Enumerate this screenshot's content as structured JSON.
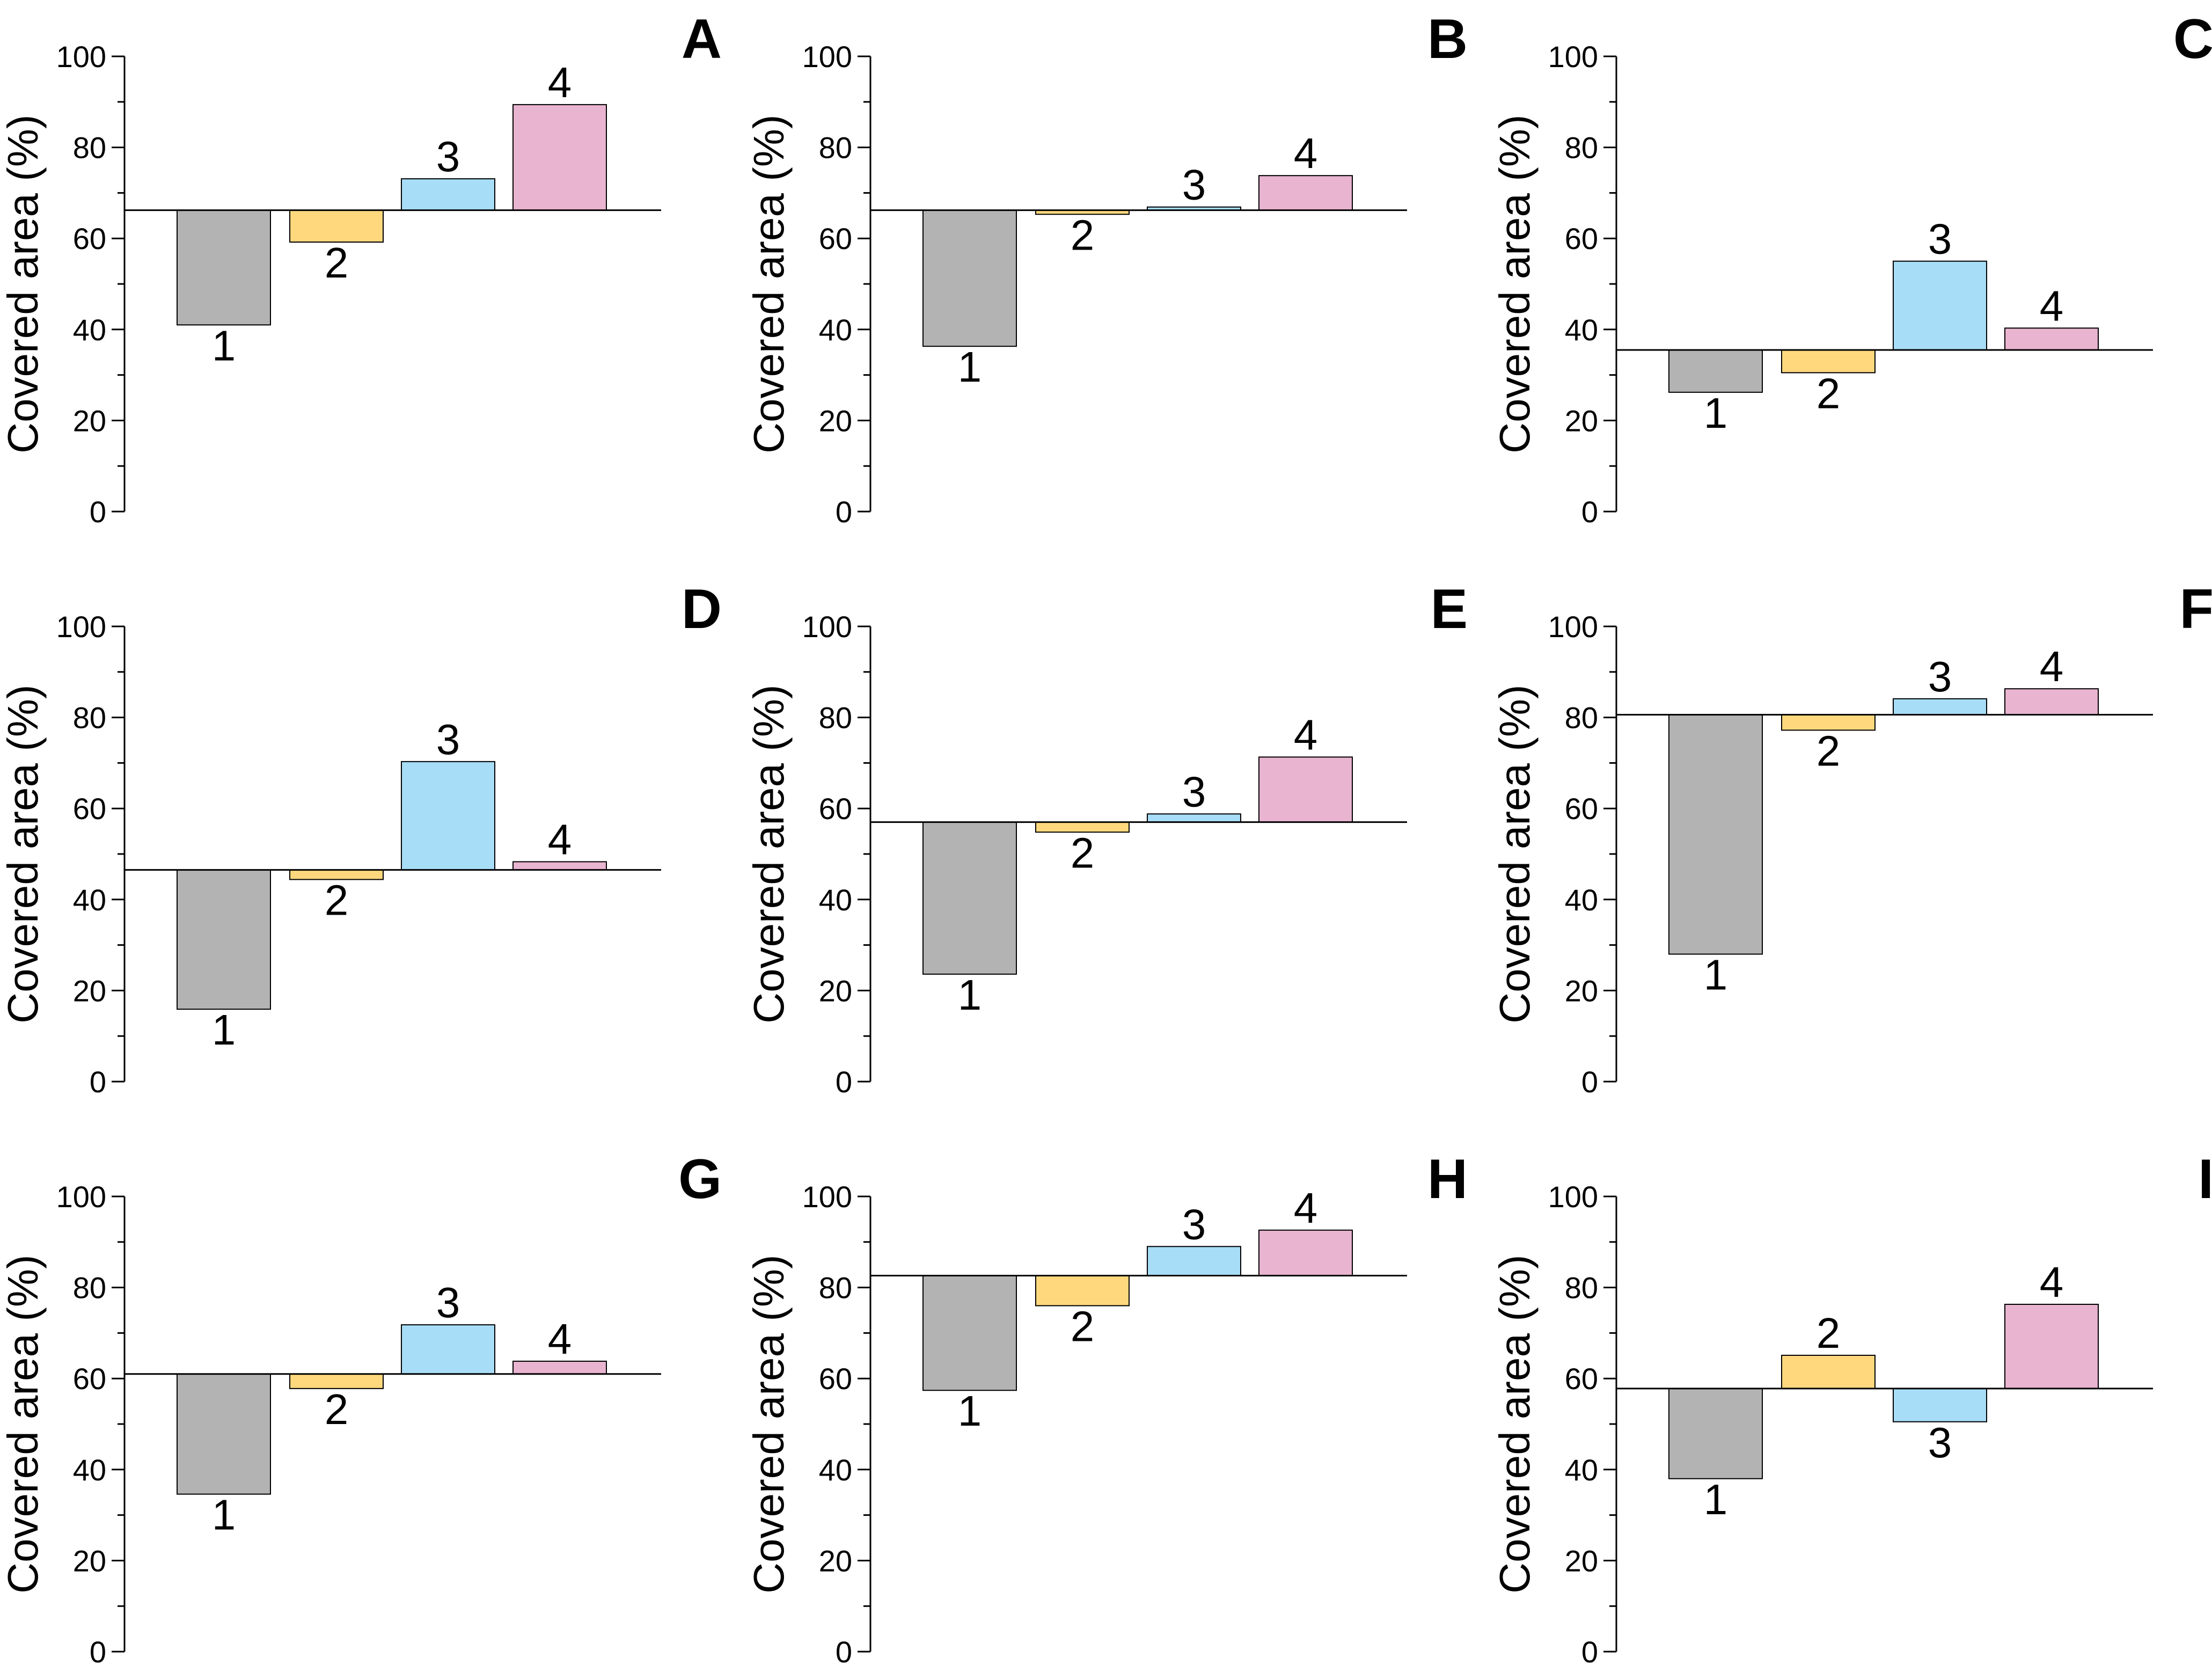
{
  "figure": {
    "panel_count": 9
  },
  "colors": {
    "bar_1": "#b3b3b3",
    "bar_2": "#ffd87e",
    "bar_3": "#a8ddf7",
    "bar_4": "#e8b4d0",
    "axis": "#000000"
  },
  "chart_data": [
    {
      "panel": "A",
      "type": "bar",
      "title": "",
      "xlabel": "",
      "ylabel": "Covered area (%)",
      "ylim": [
        0,
        100
      ],
      "yticks": [
        "0",
        "20",
        "40",
        "60",
        "80",
        "100"
      ],
      "baseline": 66.2,
      "categories": [
        "1",
        "2",
        "3",
        "4"
      ],
      "values": [
        41.0,
        59.2,
        73.1,
        89.4
      ]
    },
    {
      "panel": "B",
      "type": "bar",
      "title": "",
      "xlabel": "",
      "ylabel": "Covered area (%)",
      "ylim": [
        0,
        100
      ],
      "yticks": [
        "0",
        "20",
        "40",
        "60",
        "80",
        "100"
      ],
      "baseline": 66.2,
      "categories": [
        "1",
        "2",
        "3",
        "4"
      ],
      "values": [
        36.3,
        65.3,
        66.9,
        73.8
      ]
    },
    {
      "panel": "C",
      "type": "bar",
      "title": "",
      "xlabel": "",
      "ylabel": "Covered area (%)",
      "ylim": [
        0,
        100
      ],
      "yticks": [
        "0",
        "20",
        "40",
        "60",
        "80",
        "100"
      ],
      "baseline": 35.5,
      "categories": [
        "1",
        "2",
        "3",
        "4"
      ],
      "values": [
        26.2,
        30.5,
        55.0,
        40.3
      ]
    },
    {
      "panel": "D",
      "type": "bar",
      "title": "",
      "xlabel": "",
      "ylabel": "Covered area (%)",
      "ylim": [
        0,
        100
      ],
      "yticks": [
        "0",
        "20",
        "40",
        "60",
        "80",
        "100"
      ],
      "baseline": 46.5,
      "categories": [
        "1",
        "2",
        "3",
        "4"
      ],
      "values": [
        15.9,
        44.4,
        70.3,
        48.3
      ]
    },
    {
      "panel": "E",
      "type": "bar",
      "title": "",
      "xlabel": "",
      "ylabel": "Covered area (%)",
      "ylim": [
        0,
        100
      ],
      "yticks": [
        "0",
        "20",
        "40",
        "60",
        "80",
        "100"
      ],
      "baseline": 57.0,
      "categories": [
        "1",
        "2",
        "3",
        "4"
      ],
      "values": [
        23.6,
        54.8,
        58.8,
        71.3
      ]
    },
    {
      "panel": "F",
      "type": "bar",
      "title": "",
      "xlabel": "",
      "ylabel": "Covered area (%)",
      "ylim": [
        0,
        100
      ],
      "yticks": [
        "0",
        "20",
        "40",
        "60",
        "80",
        "100"
      ],
      "baseline": 80.6,
      "categories": [
        "1",
        "2",
        "3",
        "4"
      ],
      "values": [
        28.0,
        77.2,
        84.1,
        86.3
      ]
    },
    {
      "panel": "G",
      "type": "bar",
      "title": "",
      "xlabel": "",
      "ylabel": "Covered area (%)",
      "ylim": [
        0,
        100
      ],
      "yticks": [
        "0",
        "20",
        "40",
        "60",
        "80",
        "100"
      ],
      "baseline": 61.0,
      "categories": [
        "1",
        "2",
        "3",
        "4"
      ],
      "values": [
        34.6,
        57.8,
        71.8,
        63.8
      ]
    },
    {
      "panel": "H",
      "type": "bar",
      "title": "",
      "xlabel": "",
      "ylabel": "Covered area (%)",
      "ylim": [
        0,
        100
      ],
      "yticks": [
        "0",
        "20",
        "40",
        "60",
        "80",
        "100"
      ],
      "baseline": 82.6,
      "categories": [
        "1",
        "2",
        "3",
        "4"
      ],
      "values": [
        57.4,
        76.0,
        89.0,
        92.6
      ]
    },
    {
      "panel": "I",
      "type": "bar",
      "title": "",
      "xlabel": "",
      "ylabel": "Covered area (%)",
      "ylim": [
        0,
        100
      ],
      "yticks": [
        "0",
        "20",
        "40",
        "60",
        "80",
        "100"
      ],
      "baseline": 57.8,
      "categories": [
        "1",
        "2",
        "3",
        "4"
      ],
      "values": [
        38.0,
        65.1,
        50.5,
        76.3
      ]
    }
  ]
}
